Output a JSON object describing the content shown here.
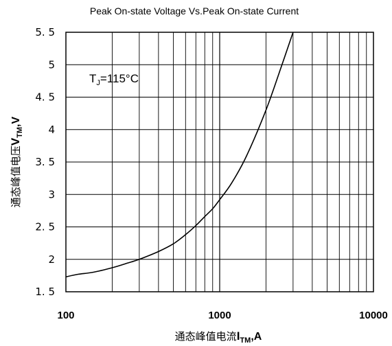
{
  "chart_data": {
    "type": "line",
    "title": "Peak On-state Voltage Vs.Peak On-state Current",
    "xlabel": {
      "prefix": "通态峰值电流",
      "main": "I",
      "sub": "TM",
      "suffix": ",A"
    },
    "ylabel": {
      "prefix": "通态峰值电压",
      "main": "V",
      "sub": "TM",
      "suffix": ",V"
    },
    "x_scale": "log",
    "xlim": [
      100,
      10000
    ],
    "ylim": [
      1.5,
      5.5
    ],
    "x_tick_labels": [
      {
        "value": 100,
        "label": "100"
      },
      {
        "value": 1000,
        "label": "1000"
      },
      {
        "value": 10000,
        "label": "10000"
      }
    ],
    "y_tick_labels": [
      {
        "value": 1.5,
        "label": "1. 5"
      },
      {
        "value": 2,
        "label": "2"
      },
      {
        "value": 2.5,
        "label": "2. 5"
      },
      {
        "value": 3,
        "label": "3"
      },
      {
        "value": 3.5,
        "label": "3. 5"
      },
      {
        "value": 4,
        "label": "4"
      },
      {
        "value": 4.5,
        "label": "4. 5"
      },
      {
        "value": 5,
        "label": "5"
      },
      {
        "value": 5.5,
        "label": "5. 5"
      }
    ],
    "grid": true,
    "annotation": {
      "main": "T",
      "sub": "J",
      "suffix": "=115°C"
    },
    "series": [
      {
        "color": "#000000",
        "x": [
          100,
          120,
          150,
          200,
          250,
          300,
          400,
          500,
          600,
          700,
          800,
          900,
          1000,
          1200,
          1500,
          2000,
          2500,
          3000
        ],
        "y": [
          1.73,
          1.77,
          1.8,
          1.87,
          1.94,
          2.0,
          2.12,
          2.24,
          2.38,
          2.52,
          2.66,
          2.78,
          2.92,
          3.18,
          3.6,
          4.3,
          4.95,
          5.5
        ]
      }
    ]
  }
}
